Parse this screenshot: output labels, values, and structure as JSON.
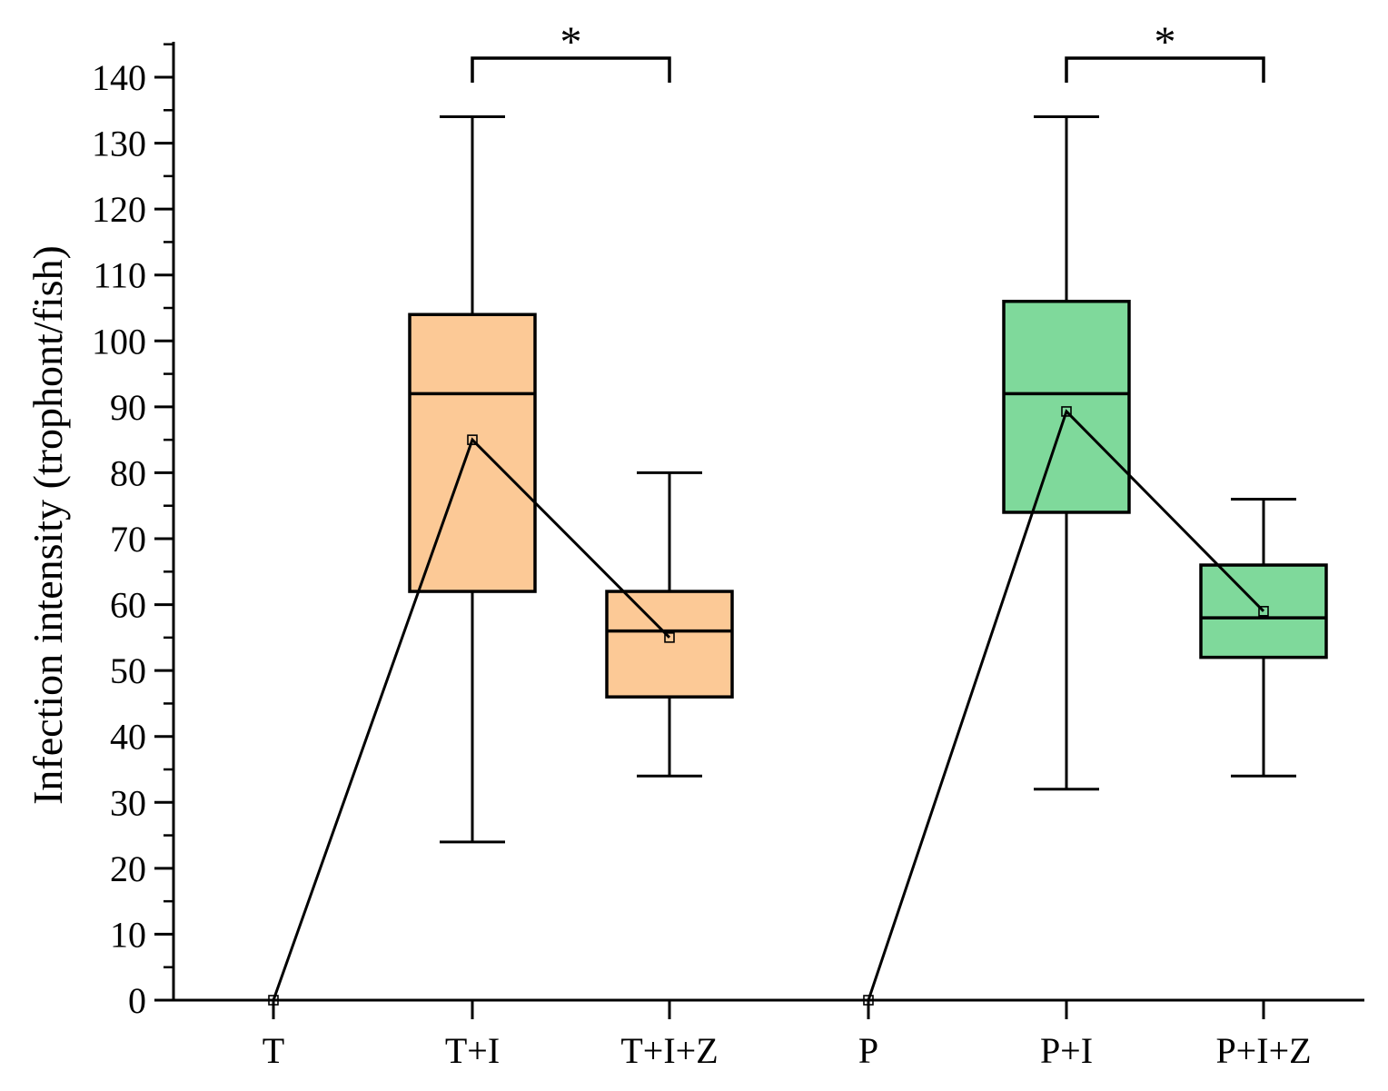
{
  "chart_data": {
    "type": "box",
    "title": "",
    "xlabel": "",
    "ylabel": "Infection intensity (trophont/fish)",
    "ylim": [
      0,
      140
    ],
    "yticks": [
      0,
      10,
      20,
      30,
      40,
      50,
      60,
      70,
      80,
      90,
      100,
      110,
      120,
      130,
      140
    ],
    "categories": [
      "T",
      "T+I",
      "T+I+Z",
      "P",
      "P+I",
      "P+I+Z"
    ],
    "colors": {
      "T_group": "#FCC996",
      "P_group": "#7FD99B",
      "stroke": "#000000"
    },
    "boxes": [
      {
        "category": "T",
        "min": 0,
        "q1": 0,
        "median": 0,
        "q3": 0,
        "max": 0,
        "mean": 0,
        "group": "T_group"
      },
      {
        "category": "T+I",
        "min": 24,
        "q1": 62,
        "median": 92,
        "q3": 104,
        "max": 134,
        "mean": 85,
        "group": "T_group"
      },
      {
        "category": "T+I+Z",
        "min": 34,
        "q1": 46,
        "median": 56,
        "q3": 62,
        "max": 80,
        "mean": 55,
        "group": "T_group"
      },
      {
        "category": "P",
        "min": 0,
        "q1": 0,
        "median": 0,
        "q3": 0,
        "max": 0,
        "mean": 0,
        "group": "P_group"
      },
      {
        "category": "P+I",
        "min": 32,
        "q1": 74,
        "median": 92,
        "q3": 106,
        "max": 134,
        "mean": 89.3,
        "group": "P_group"
      },
      {
        "category": "P+I+Z",
        "min": 34,
        "q1": 52,
        "median": 58,
        "q3": 66,
        "max": 76,
        "mean": 59,
        "group": "P_group"
      }
    ],
    "mean_lines": [
      [
        "T",
        "T+I",
        "T+I+Z"
      ],
      [
        "P",
        "P+I",
        "P+I+Z"
      ]
    ],
    "significance": [
      {
        "from": "T+I",
        "to": "T+I+Z",
        "label": "*"
      },
      {
        "from": "P+I",
        "to": "P+I+Z",
        "label": "*"
      }
    ]
  }
}
